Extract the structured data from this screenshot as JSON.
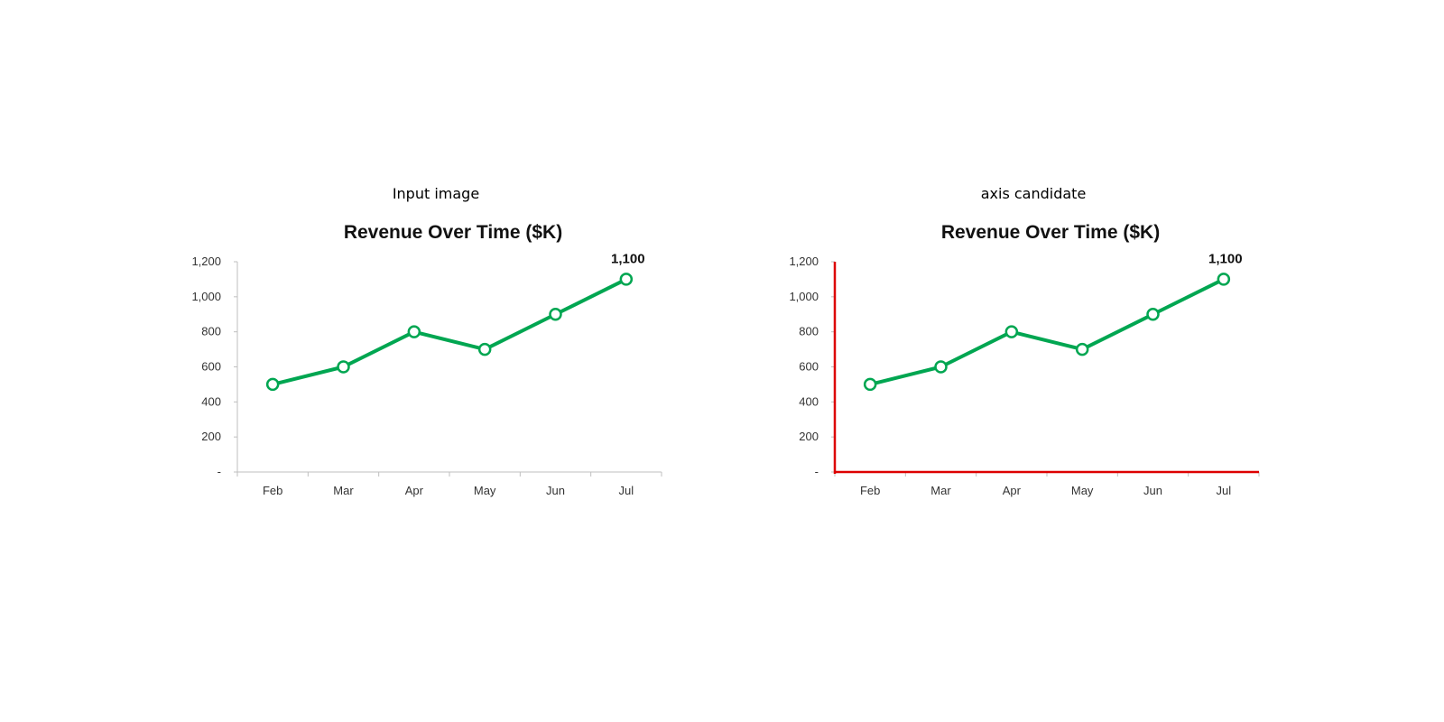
{
  "panels": [
    {
      "caption": "Input image",
      "highlight_axes": false
    },
    {
      "caption": "axis candidate",
      "highlight_axes": true
    }
  ],
  "colors": {
    "series": "#00a651",
    "axis_highlight": "#dd0000",
    "axis": "#bfbfbf"
  },
  "chart_data": [
    {
      "type": "line",
      "title": "Revenue Over Time ($K)",
      "xlabel": "",
      "ylabel": "",
      "categories": [
        "Feb",
        "Mar",
        "Apr",
        "May",
        "Jun",
        "Jul"
      ],
      "series": [
        {
          "values": [
            500,
            600,
            800,
            700,
            900,
            1100
          ]
        }
      ],
      "ylim": [
        0,
        1200
      ],
      "yticks": [
        0,
        200,
        400,
        600,
        800,
        1000,
        1200
      ],
      "ytick_labels": [
        "-",
        "200",
        "400",
        "600",
        "800",
        "1,000",
        "1,200"
      ],
      "data_labels": [
        {
          "index": 5,
          "text": "1,100"
        }
      ],
      "grid": false
    },
    {
      "type": "line",
      "title": "Revenue Over Time ($K)",
      "xlabel": "",
      "ylabel": "",
      "categories": [
        "Feb",
        "Mar",
        "Apr",
        "May",
        "Jun",
        "Jul"
      ],
      "series": [
        {
          "values": [
            500,
            600,
            800,
            700,
            900,
            1100
          ]
        }
      ],
      "ylim": [
        0,
        1200
      ],
      "yticks": [
        0,
        200,
        400,
        600,
        800,
        1000,
        1200
      ],
      "ytick_labels": [
        "-",
        "200",
        "400",
        "600",
        "800",
        "1,000",
        "1,200"
      ],
      "data_labels": [
        {
          "index": 5,
          "text": "1,100"
        }
      ],
      "grid": false
    }
  ]
}
